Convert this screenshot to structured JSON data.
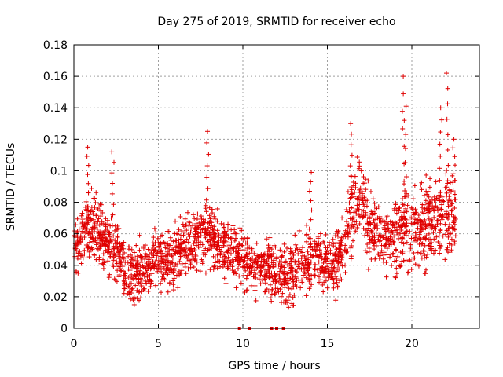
{
  "chart_data": {
    "type": "scatter",
    "title": "Day 275 of 2019, SRMTID for receiver echo",
    "xlabel": "GPS time / hours",
    "ylabel": "SRMTID / TECUs",
    "xlim": [
      0,
      24
    ],
    "ylim": [
      0,
      0.18
    ],
    "x_ticks": [
      0,
      5,
      10,
      15,
      20
    ],
    "x_tick_labels": [
      "0",
      "5",
      "10",
      "15",
      "20"
    ],
    "y_ticks": [
      0,
      0.02,
      0.04,
      0.06,
      0.08,
      0.1,
      0.12,
      0.14,
      0.16,
      0.18
    ],
    "y_tick_labels": [
      "0",
      "0.02",
      "0.04",
      "0.06",
      "0.08",
      "0.1",
      "0.12",
      "0.14",
      "0.16",
      "0.18"
    ],
    "grid": true,
    "marker": "plus",
    "color": "#e00000",
    "x_range_of_data": [
      0,
      22.6
    ],
    "trend": [
      {
        "x": 0.0,
        "y": 0.05
      },
      {
        "x": 0.5,
        "y": 0.06
      },
      {
        "x": 1.0,
        "y": 0.065
      },
      {
        "x": 1.5,
        "y": 0.06
      },
      {
        "x": 2.0,
        "y": 0.055
      },
      {
        "x": 2.5,
        "y": 0.05
      },
      {
        "x": 3.0,
        "y": 0.038
      },
      {
        "x": 3.5,
        "y": 0.035
      },
      {
        "x": 4.0,
        "y": 0.036
      },
      {
        "x": 4.5,
        "y": 0.04
      },
      {
        "x": 5.0,
        "y": 0.045
      },
      {
        "x": 5.5,
        "y": 0.042
      },
      {
        "x": 6.0,
        "y": 0.048
      },
      {
        "x": 6.5,
        "y": 0.05
      },
      {
        "x": 7.0,
        "y": 0.055
      },
      {
        "x": 7.5,
        "y": 0.058
      },
      {
        "x": 8.0,
        "y": 0.06
      },
      {
        "x": 8.5,
        "y": 0.055
      },
      {
        "x": 9.0,
        "y": 0.05
      },
      {
        "x": 9.5,
        "y": 0.048
      },
      {
        "x": 10.0,
        "y": 0.045
      },
      {
        "x": 10.5,
        "y": 0.04
      },
      {
        "x": 11.0,
        "y": 0.04
      },
      {
        "x": 11.5,
        "y": 0.038
      },
      {
        "x": 12.0,
        "y": 0.035
      },
      {
        "x": 12.5,
        "y": 0.033
      },
      {
        "x": 13.0,
        "y": 0.036
      },
      {
        "x": 13.5,
        "y": 0.042
      },
      {
        "x": 14.0,
        "y": 0.045
      },
      {
        "x": 14.5,
        "y": 0.042
      },
      {
        "x": 15.0,
        "y": 0.04
      },
      {
        "x": 15.5,
        "y": 0.042
      },
      {
        "x": 16.0,
        "y": 0.048
      },
      {
        "x": 16.5,
        "y": 0.075
      },
      {
        "x": 17.0,
        "y": 0.078
      },
      {
        "x": 17.5,
        "y": 0.065
      },
      {
        "x": 18.0,
        "y": 0.06
      },
      {
        "x": 18.5,
        "y": 0.055
      },
      {
        "x": 19.0,
        "y": 0.058
      },
      {
        "x": 19.5,
        "y": 0.06
      },
      {
        "x": 20.0,
        "y": 0.062
      },
      {
        "x": 20.5,
        "y": 0.065
      },
      {
        "x": 21.0,
        "y": 0.07
      },
      {
        "x": 21.5,
        "y": 0.068
      },
      {
        "x": 22.0,
        "y": 0.075
      },
      {
        "x": 22.6,
        "y": 0.07
      }
    ],
    "spikes": [
      {
        "x": 0.8,
        "y": 0.115
      },
      {
        "x": 2.3,
        "y": 0.112
      },
      {
        "x": 7.9,
        "y": 0.125
      },
      {
        "x": 14.0,
        "y": 0.099
      },
      {
        "x": 16.4,
        "y": 0.13
      },
      {
        "x": 19.5,
        "y": 0.16
      },
      {
        "x": 19.6,
        "y": 0.141
      },
      {
        "x": 21.7,
        "y": 0.14
      },
      {
        "x": 22.1,
        "y": 0.162
      },
      {
        "x": 22.5,
        "y": 0.12
      }
    ],
    "zero_markers": [
      {
        "x": 9.8,
        "y": 0.0
      },
      {
        "x": 10.4,
        "y": 0.0
      },
      {
        "x": 11.7,
        "y": 0.0
      },
      {
        "x": 12.0,
        "y": 0.0
      },
      {
        "x": 12.4,
        "y": 0.0
      }
    ]
  }
}
